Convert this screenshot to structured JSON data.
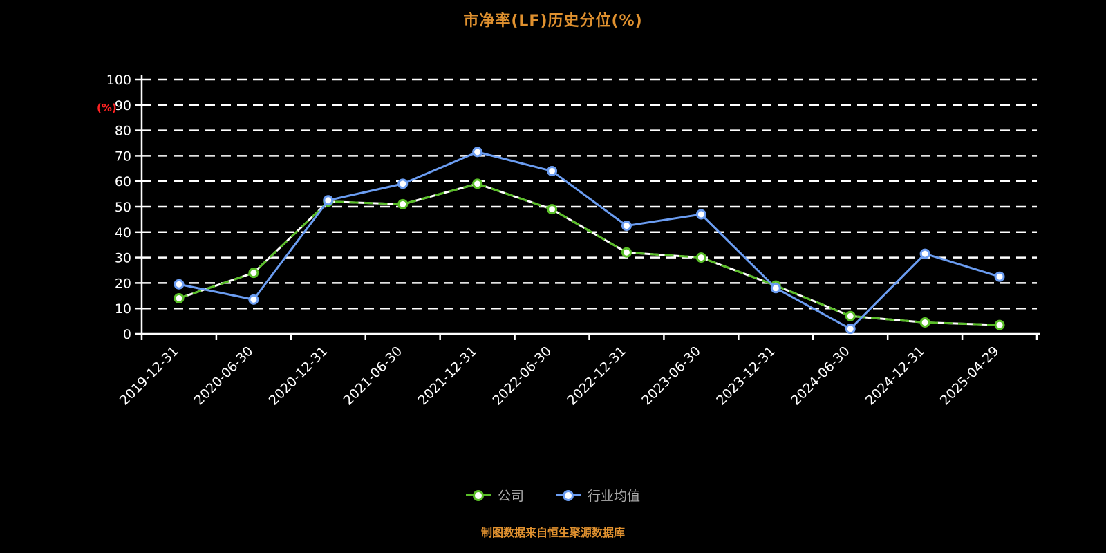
{
  "title": "市净率(LF)历史分位(%)",
  "footer": "制图数据来自恒生聚源数据库",
  "colors": {
    "background": "#000000",
    "title": "#e0912f",
    "footer": "#e0912f",
    "ylabel": "#ff2222",
    "axis": "#ffffff",
    "grid": "#ffffff",
    "tick_text": "#ffffff",
    "legend_text": "#aaaaaa",
    "company": "#5abf28",
    "industry": "#6b9df2"
  },
  "chart_data": {
    "type": "line",
    "title": "市净率(LF)历史分位(%)",
    "ylabel": "(%)",
    "xlabel": "",
    "ylim": [
      0,
      100
    ],
    "yticks": [
      0,
      10,
      20,
      30,
      40,
      50,
      60,
      70,
      80,
      90,
      100
    ],
    "grid": true,
    "grid_style": "dashed",
    "legend_position": "bottom",
    "categories": [
      "2019-12-31",
      "2020-06-30",
      "2020-12-31",
      "2021-06-30",
      "2021-12-31",
      "2022-06-30",
      "2022-12-31",
      "2023-06-30",
      "2023-12-31",
      "2024-06-30",
      "2024-12-31",
      "2025-04-29"
    ],
    "series": [
      {
        "name": "公司",
        "color": "#5abf28",
        "style": "dashed",
        "values": [
          14,
          24,
          52,
          51,
          59,
          49,
          32,
          30,
          19,
          7,
          4.5,
          3.5
        ]
      },
      {
        "name": "行业均值",
        "color": "#6b9df2",
        "style": "solid",
        "values": [
          19.5,
          13.5,
          52.5,
          59,
          71.5,
          64,
          42.5,
          47,
          18,
          2,
          31.5,
          22.5
        ]
      }
    ]
  },
  "legend": {
    "items": [
      {
        "label": "公司"
      },
      {
        "label": "行业均值"
      }
    ]
  }
}
